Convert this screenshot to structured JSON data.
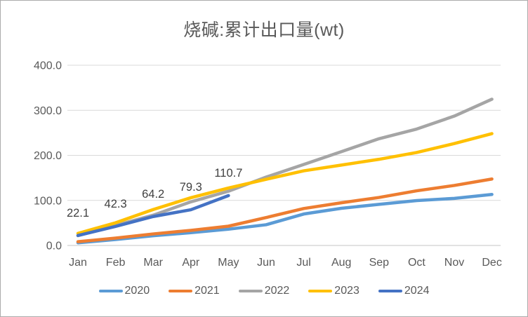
{
  "chart_data": {
    "type": "line",
    "title": "烧碱:累计出口量(wt)",
    "categories": [
      "Jan",
      "Feb",
      "Mar",
      "Apr",
      "May",
      "Jun",
      "Jul",
      "Aug",
      "Sep",
      "Oct",
      "Nov",
      "Dec"
    ],
    "y_axis": {
      "ticks": [
        0,
        100,
        200,
        300,
        400
      ],
      "labels": [
        "0.0",
        "100.0",
        "200.0",
        "300.0",
        "400.0"
      ],
      "ylim": [
        0,
        400
      ]
    },
    "grid": true,
    "legend_position": "bottom",
    "series": [
      {
        "name": "2020",
        "color": "#5B9BD5",
        "values": [
          5.9,
          13.2,
          21.5,
          28.4,
          36.1,
          46.0,
          69.8,
          82.5,
          91.3,
          99.6,
          104.5,
          113.2
        ]
      },
      {
        "name": "2021",
        "color": "#ED7D31",
        "values": [
          8.3,
          16.4,
          25.6,
          33.5,
          42.8,
          61.9,
          82.0,
          94.8,
          106.5,
          121.3,
          133.2,
          147.5
        ]
      },
      {
        "name": "2022",
        "color": "#A5A5A5",
        "values": [
          21.8,
          44.6,
          67.2,
          96.8,
          120.4,
          151.7,
          179.8,
          208.2,
          236.9,
          258.3,
          287.1,
          324.6
        ]
      },
      {
        "name": "2023",
        "color": "#FFC000",
        "values": [
          26.8,
          50.3,
          79.8,
          105.9,
          127.6,
          146.8,
          165.7,
          178.4,
          191.2,
          206.3,
          226.1,
          248.2
        ]
      },
      {
        "name": "2024",
        "color": "#4472C4",
        "values": [
          22.1,
          42.3,
          64.2,
          79.3,
          110.7
        ],
        "data_labels": [
          "22.1",
          "42.3",
          "64.2",
          "79.3",
          "110.7"
        ]
      }
    ]
  }
}
